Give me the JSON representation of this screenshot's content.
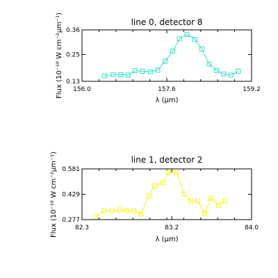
{
  "chart_data": [
    {
      "type": "line",
      "title": "line 0, detector 8",
      "xlabel": "λ (μm)",
      "ylabel": "Flux (10⁻¹⁸ W cm⁻²μm⁻¹)",
      "xlim": [
        156.0,
        159.2
      ],
      "ylim": [
        0.13,
        0.36
      ],
      "xticks": [
        "156.0",
        "157.6",
        "159.2"
      ],
      "yticks": [
        "0.13",
        "0.25",
        "0.36"
      ],
      "grid": false,
      "series": [
        {
          "color": "#33e0c8",
          "marker": "square",
          "x": [
            156.42,
            156.59,
            156.73,
            156.87,
            157.0,
            157.14,
            157.29,
            157.43,
            157.57,
            157.71,
            157.84,
            157.98,
            158.13,
            158.26,
            158.4,
            158.54,
            158.67,
            158.81,
            158.95
          ],
          "y": [
            0.155,
            0.16,
            0.16,
            0.158,
            0.178,
            0.175,
            0.173,
            0.18,
            0.22,
            0.265,
            0.32,
            0.34,
            0.318,
            0.275,
            0.207,
            0.178,
            0.163,
            0.158,
            0.175
          ]
        }
      ]
    },
    {
      "type": "line",
      "title": "line 1, detector 2",
      "xlabel": "λ (μm)",
      "ylabel": "Flux (10⁻¹⁸ W cm⁻²μm⁻¹)",
      "xlim": [
        82.3,
        84.0
      ],
      "ylim": [
        0.277,
        0.581
      ],
      "xticks": [
        "82.3",
        "83.2",
        "84.0"
      ],
      "yticks": [
        "0.277",
        "0.429",
        "0.581"
      ],
      "grid": false,
      "series": [
        {
          "color": "#f5f51e",
          "marker": "square",
          "x": [
            82.44,
            82.52,
            82.6,
            82.68,
            82.75,
            82.82,
            82.89,
            82.97,
            83.03,
            83.11,
            83.17,
            83.25,
            83.32,
            83.39,
            83.46,
            83.53,
            83.59,
            83.67,
            83.73
          ],
          "y": [
            0.296,
            0.33,
            0.328,
            0.335,
            0.33,
            0.33,
            0.31,
            0.42,
            0.48,
            0.5,
            0.56,
            0.56,
            0.43,
            0.39,
            0.39,
            0.315,
            0.405,
            0.363,
            0.39
          ]
        }
      ]
    }
  ]
}
